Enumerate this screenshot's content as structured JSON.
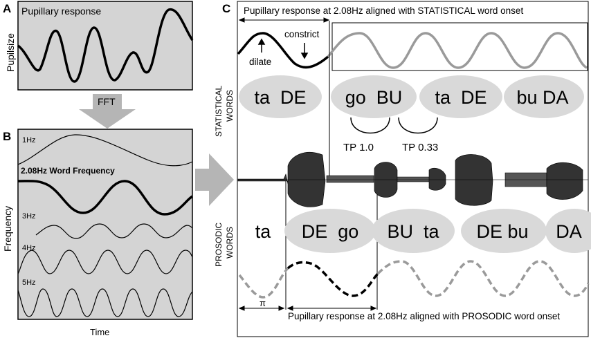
{
  "panel_a": {
    "letter": "A",
    "title": "Pupillary response",
    "ylabel": "Pupilsize"
  },
  "arrow_fft": {
    "label": "FFT"
  },
  "panel_b": {
    "letter": "B",
    "ylabel": "Frequency",
    "xlabel": "Time",
    "rows": [
      {
        "label": "1Hz"
      },
      {
        "label": "2.08Hz  Word Frequency"
      },
      {
        "label": "3Hz"
      },
      {
        "label": "4Hz"
      },
      {
        "label": "5Hz"
      }
    ]
  },
  "panel_c": {
    "letter": "C",
    "top_caption": "Pupillary response at 2.08Hz aligned with STATISTICAL word onset",
    "bottom_caption": "Pupillary response at 2.08Hz aligned with PROSODIC word onset",
    "dilate_label": "dilate",
    "constrict_label": "constrict",
    "pi_label": "π",
    "statistical_label_1": "STATISTICAL",
    "statistical_label_2": "WORDS",
    "prosodic_label_1": "PROSODIC",
    "prosodic_label_2": "WORDS",
    "statistical_words": [
      "ta  DE",
      "go  BU",
      "ta  DE",
      "bu DA"
    ],
    "prosodic_words": [
      "ta",
      "DE  go",
      "BU  ta",
      "DE bu",
      "DA"
    ],
    "tp_labels": [
      "TP 1.0",
      "TP 0.33"
    ]
  },
  "colors": {
    "panel_fill": "#d4d4d4",
    "ellipse_fill": "#d9d9d9",
    "gray_wave": "#9a9a9a",
    "arrow_gray": "#b5b5b5"
  }
}
